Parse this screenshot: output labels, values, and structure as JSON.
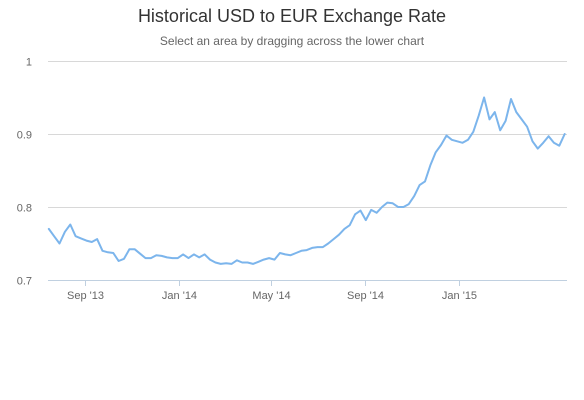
{
  "chart_data": {
    "type": "line",
    "title": "Historical USD to EUR Exchange Rate",
    "subtitle": "Select an area by dragging across the lower chart",
    "xlabel": "",
    "ylabel": "",
    "ylim": [
      0.7,
      1.0
    ],
    "y_ticks": [
      0.7,
      0.8,
      0.9,
      1
    ],
    "y_tick_labels": [
      "0.7",
      "0.8",
      "0.9",
      "1"
    ],
    "xlim": [
      "2013-07-15",
      "2015-05-22"
    ],
    "x_ticks": [
      "2013-09-01",
      "2014-01-01",
      "2014-05-01",
      "2014-09-01",
      "2015-01-01"
    ],
    "x_tick_labels": [
      "Sep '13",
      "Jan '14",
      "May '14",
      "Sep '14",
      "Jan '15"
    ],
    "grid": "horizontal",
    "legend": "none",
    "series": [
      {
        "color": "#7cb5ec",
        "points": [
          [
            "2013-07-16",
            0.77
          ],
          [
            "2013-07-23",
            0.76
          ],
          [
            "2013-07-30",
            0.75
          ],
          [
            "2013-08-06",
            0.766
          ],
          [
            "2013-08-13",
            0.776
          ],
          [
            "2013-08-20",
            0.76
          ],
          [
            "2013-08-27",
            0.757
          ],
          [
            "2013-09-03",
            0.754
          ],
          [
            "2013-09-10",
            0.752
          ],
          [
            "2013-09-17",
            0.756
          ],
          [
            "2013-09-24",
            0.74
          ],
          [
            "2013-10-01",
            0.738
          ],
          [
            "2013-10-08",
            0.737
          ],
          [
            "2013-10-15",
            0.726
          ],
          [
            "2013-10-22",
            0.729
          ],
          [
            "2013-10-29",
            0.742
          ],
          [
            "2013-11-05",
            0.742
          ],
          [
            "2013-11-12",
            0.736
          ],
          [
            "2013-11-19",
            0.73
          ],
          [
            "2013-11-26",
            0.73
          ],
          [
            "2013-12-03",
            0.734
          ],
          [
            "2013-12-10",
            0.733
          ],
          [
            "2013-12-17",
            0.731
          ],
          [
            "2013-12-24",
            0.73
          ],
          [
            "2013-12-31",
            0.73
          ],
          [
            "2014-01-07",
            0.735
          ],
          [
            "2014-01-14",
            0.73
          ],
          [
            "2014-01-21",
            0.735
          ],
          [
            "2014-01-28",
            0.731
          ],
          [
            "2014-02-04",
            0.735
          ],
          [
            "2014-02-11",
            0.728
          ],
          [
            "2014-02-18",
            0.724
          ],
          [
            "2014-02-25",
            0.722
          ],
          [
            "2014-03-04",
            0.723
          ],
          [
            "2014-03-11",
            0.722
          ],
          [
            "2014-03-18",
            0.727
          ],
          [
            "2014-03-25",
            0.724
          ],
          [
            "2014-04-01",
            0.724
          ],
          [
            "2014-04-08",
            0.722
          ],
          [
            "2014-04-15",
            0.725
          ],
          [
            "2014-04-22",
            0.728
          ],
          [
            "2014-04-29",
            0.73
          ],
          [
            "2014-05-06",
            0.728
          ],
          [
            "2014-05-13",
            0.737
          ],
          [
            "2014-05-20",
            0.735
          ],
          [
            "2014-05-27",
            0.734
          ],
          [
            "2014-06-03",
            0.737
          ],
          [
            "2014-06-10",
            0.74
          ],
          [
            "2014-06-17",
            0.741
          ],
          [
            "2014-06-24",
            0.744
          ],
          [
            "2014-07-01",
            0.745
          ],
          [
            "2014-07-08",
            0.745
          ],
          [
            "2014-07-15",
            0.75
          ],
          [
            "2014-07-22",
            0.756
          ],
          [
            "2014-07-29",
            0.762
          ],
          [
            "2014-08-05",
            0.77
          ],
          [
            "2014-08-12",
            0.775
          ],
          [
            "2014-08-19",
            0.79
          ],
          [
            "2014-08-26",
            0.795
          ],
          [
            "2014-09-02",
            0.782
          ],
          [
            "2014-09-09",
            0.796
          ],
          [
            "2014-09-16",
            0.792
          ],
          [
            "2014-09-23",
            0.8
          ],
          [
            "2014-09-30",
            0.806
          ],
          [
            "2014-10-07",
            0.805
          ],
          [
            "2014-10-14",
            0.8
          ],
          [
            "2014-10-21",
            0.8
          ],
          [
            "2014-10-28",
            0.804
          ],
          [
            "2014-11-04",
            0.815
          ],
          [
            "2014-11-11",
            0.83
          ],
          [
            "2014-11-18",
            0.835
          ],
          [
            "2014-11-25",
            0.857
          ],
          [
            "2014-12-02",
            0.875
          ],
          [
            "2014-12-09",
            0.885
          ],
          [
            "2014-12-16",
            0.898
          ],
          [
            "2014-12-23",
            0.892
          ],
          [
            "2014-12-30",
            0.89
          ],
          [
            "2015-01-06",
            0.888
          ],
          [
            "2015-01-13",
            0.892
          ],
          [
            "2015-01-20",
            0.903
          ],
          [
            "2015-01-27",
            0.925
          ],
          [
            "2015-02-03",
            0.95
          ],
          [
            "2015-02-10",
            0.92
          ],
          [
            "2015-02-17",
            0.93
          ],
          [
            "2015-02-24",
            0.905
          ],
          [
            "2015-03-03",
            0.918
          ],
          [
            "2015-03-10",
            0.948
          ],
          [
            "2015-03-17",
            0.93
          ],
          [
            "2015-03-24",
            0.92
          ],
          [
            "2015-03-31",
            0.91
          ],
          [
            "2015-04-07",
            0.89
          ],
          [
            "2015-04-14",
            0.88
          ],
          [
            "2015-04-21",
            0.888
          ],
          [
            "2015-04-28",
            0.897
          ],
          [
            "2015-05-05",
            0.888
          ],
          [
            "2015-05-12",
            0.884
          ],
          [
            "2015-05-19",
            0.9
          ]
        ]
      }
    ]
  }
}
